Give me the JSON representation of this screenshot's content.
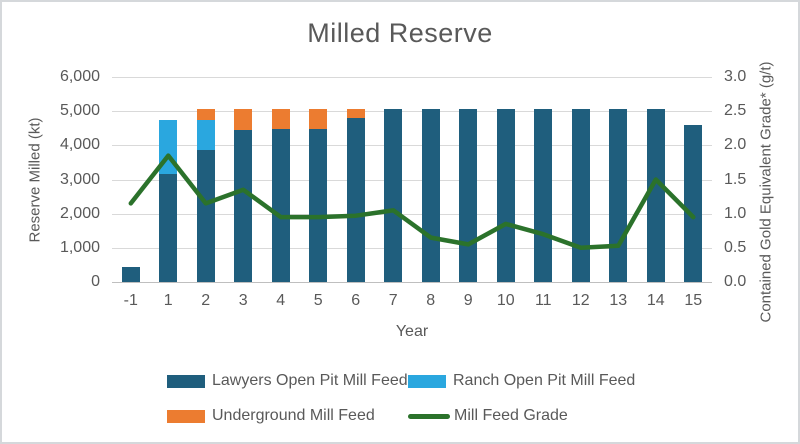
{
  "title": "Milled Reserve",
  "chart_data": {
    "type": "bar",
    "subtype": "stacked bars with overlay line on secondary axis",
    "title": "Milled Reserve",
    "xlabel": "Year",
    "ylabel_left": "Reserve Milled (kt)",
    "ylabel_right": "Contained Gold Equivalent Grade* (g/t)",
    "categories": [
      "-1",
      "1",
      "2",
      "3",
      "4",
      "5",
      "6",
      "7",
      "8",
      "9",
      "10",
      "11",
      "12",
      "13",
      "14",
      "15"
    ],
    "series": [
      {
        "name": "Lawyers Open Pit Mill Feed",
        "type": "stacked-bar",
        "axis": "left",
        "color": "#1f5e7d",
        "values": [
          450,
          3150,
          3875,
          4450,
          4475,
          4475,
          4800,
          5075,
          5075,
          5075,
          5075,
          5075,
          5075,
          5075,
          5075,
          4600
        ]
      },
      {
        "name": "Ranch Open Pit Mill Feed",
        "type": "stacked-bar",
        "axis": "left",
        "color": "#2aa7df",
        "values": [
          0,
          1600,
          875,
          0,
          0,
          0,
          0,
          0,
          0,
          0,
          0,
          0,
          0,
          0,
          0,
          0
        ]
      },
      {
        "name": "Underground Mill Feed",
        "type": "stacked-bar",
        "axis": "left",
        "color": "#ec7c30",
        "values": [
          0,
          0,
          325,
          625,
          600,
          600,
          275,
          0,
          0,
          0,
          0,
          0,
          0,
          0,
          0,
          0
        ]
      },
      {
        "name": "Mill Feed Grade",
        "type": "line",
        "axis": "right",
        "color": "#2b722b",
        "values": [
          1.15,
          1.85,
          1.15,
          1.35,
          0.95,
          0.95,
          0.97,
          1.05,
          0.65,
          0.55,
          0.85,
          0.7,
          0.5,
          0.53,
          1.5,
          0.95
        ]
      }
    ],
    "left_axis": {
      "min": 0,
      "max": 6000,
      "step": 1000,
      "ticks": [
        "0",
        "1,000",
        "2,000",
        "3,000",
        "4,000",
        "5,000",
        "6,000"
      ]
    },
    "right_axis": {
      "min": 0,
      "max": 3,
      "step": 0.5,
      "ticks": [
        "0.0",
        "0.5",
        "1.0",
        "1.5",
        "2.0",
        "2.5",
        "3.0"
      ]
    },
    "grid": true,
    "legend_position": "bottom"
  },
  "legend": {
    "items": [
      {
        "label": "Lawyers Open Pit Mill Feed",
        "swatch": "rect",
        "color": "#1f5e7d"
      },
      {
        "label": "Ranch Open Pit Mill Feed",
        "swatch": "rect",
        "color": "#2aa7df"
      },
      {
        "label": "Underground Mill Feed",
        "swatch": "rect",
        "color": "#ec7c30"
      },
      {
        "label": "Mill Feed Grade",
        "swatch": "line",
        "color": "#2b722b"
      }
    ]
  },
  "colors": {
    "title_text": "#595959",
    "axis_text": "#595959",
    "gridline": "#d9d9d9",
    "axis_line": "#bfbfbf",
    "frame_border": "#d5d8db"
  }
}
